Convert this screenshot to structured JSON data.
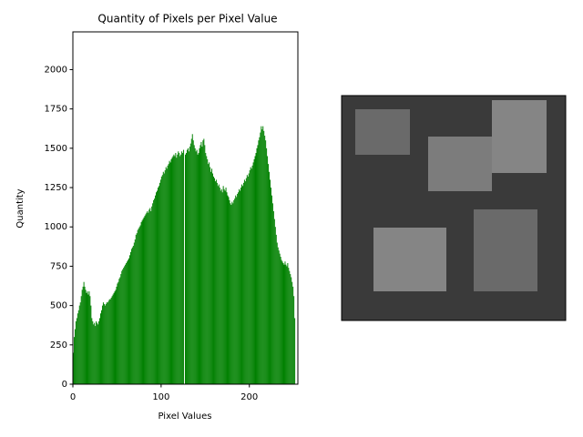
{
  "chart_data": {
    "type": "bar",
    "title": "Quantity of Pixels per Pixel Value",
    "x_label": "Pixel Values",
    "y_label": "Quantity",
    "color": "#008000",
    "x": [
      0,
      1,
      2,
      3,
      4,
      5,
      6,
      7,
      8,
      9,
      10,
      11,
      12,
      13,
      14,
      15,
      16,
      17,
      18,
      19,
      20,
      21,
      22,
      23,
      24,
      25,
      26,
      27,
      28,
      29,
      30,
      31,
      32,
      33,
      34,
      35,
      36,
      37,
      38,
      39,
      40,
      41,
      42,
      43,
      44,
      45,
      46,
      47,
      48,
      49,
      50,
      51,
      52,
      53,
      54,
      55,
      56,
      57,
      58,
      59,
      60,
      61,
      62,
      63,
      64,
      65,
      66,
      67,
      68,
      69,
      70,
      71,
      72,
      73,
      74,
      75,
      76,
      77,
      78,
      79,
      80,
      81,
      82,
      83,
      84,
      85,
      86,
      87,
      88,
      89,
      90,
      91,
      92,
      93,
      94,
      95,
      96,
      97,
      98,
      99,
      100,
      101,
      102,
      103,
      104,
      105,
      106,
      107,
      108,
      109,
      110,
      111,
      112,
      113,
      114,
      115,
      116,
      117,
      118,
      119,
      120,
      121,
      122,
      123,
      124,
      125,
      126,
      127,
      128,
      129,
      130,
      131,
      132,
      133,
      134,
      135,
      136,
      137,
      138,
      139,
      140,
      141,
      142,
      143,
      144,
      145,
      146,
      147,
      148,
      149,
      150,
      151,
      152,
      153,
      154,
      155,
      156,
      157,
      158,
      159,
      160,
      161,
      162,
      163,
      164,
      165,
      166,
      167,
      168,
      169,
      170,
      171,
      172,
      173,
      174,
      175,
      176,
      177,
      178,
      179,
      180,
      181,
      182,
      183,
      184,
      185,
      186,
      187,
      188,
      189,
      190,
      191,
      192,
      193,
      194,
      195,
      196,
      197,
      198,
      199,
      200,
      201,
      202,
      203,
      204,
      205,
      206,
      207,
      208,
      209,
      210,
      211,
      212,
      213,
      214,
      215,
      216,
      217,
      218,
      219,
      220,
      221,
      222,
      223,
      224,
      225,
      226,
      227,
      228,
      229,
      230,
      231,
      232,
      233,
      234,
      235,
      236,
      237,
      238,
      239,
      240,
      241,
      242,
      243,
      244,
      245,
      246,
      247,
      248,
      249,
      250,
      251,
      252,
      253,
      254,
      255
    ],
    "values": [
      200,
      300,
      350,
      400,
      420,
      450,
      470,
      500,
      520,
      560,
      600,
      620,
      650,
      620,
      600,
      580,
      590,
      570,
      590,
      560,
      500,
      420,
      400,
      380,
      390,
      370,
      400,
      390,
      380,
      400,
      420,
      450,
      470,
      500,
      520,
      510,
      500,
      510,
      520,
      520,
      530,
      540,
      540,
      550,
      560,
      570,
      580,
      590,
      600,
      620,
      640,
      650,
      670,
      680,
      700,
      720,
      730,
      740,
      750,
      760,
      770,
      780,
      790,
      800,
      820,
      840,
      860,
      870,
      880,
      900,
      920,
      950,
      960,
      980,
      990,
      1000,
      1010,
      1030,
      1040,
      1050,
      1060,
      1070,
      1080,
      1090,
      1100,
      1090,
      1110,
      1120,
      1100,
      1130,
      1150,
      1170,
      1180,
      1200,
      1220,
      1230,
      1250,
      1260,
      1280,
      1300,
      1320,
      1330,
      1350,
      1340,
      1360,
      1380,
      1370,
      1390,
      1400,
      1420,
      1410,
      1430,
      1440,
      1450,
      1460,
      1450,
      1470,
      1440,
      1460,
      1480,
      1470,
      1450,
      1460,
      1480,
      1470,
      1490,
      0,
      1460,
      1470,
      1490,
      1500,
      1480,
      1510,
      1530,
      1560,
      1590,
      1550,
      1520,
      1500,
      1480,
      1490,
      1460,
      1470,
      1500,
      1520,
      1540,
      1510,
      1550,
      1560,
      1520,
      1470,
      1450,
      1430,
      1400,
      1410,
      1380,
      1350,
      1370,
      1340,
      1320,
      1310,
      1290,
      1300,
      1280,
      1260,
      1270,
      1250,
      1230,
      1240,
      1220,
      1260,
      1240,
      1230,
      1250,
      1220,
      1200,
      1190,
      1170,
      1150,
      1140,
      1160,
      1150,
      1170,
      1180,
      1200,
      1190,
      1210,
      1220,
      1240,
      1230,
      1250,
      1270,
      1260,
      1280,
      1300,
      1290,
      1310,
      1330,
      1320,
      1340,
      1360,
      1380,
      1370,
      1390,
      1410,
      1430,
      1450,
      1470,
      1500,
      1520,
      1550,
      1570,
      1600,
      1640,
      1620,
      1640,
      1610,
      1580,
      1550,
      1500,
      1450,
      1400,
      1350,
      1300,
      1250,
      1200,
      1150,
      1100,
      1050,
      1000,
      950,
      900,
      870,
      850,
      830,
      810,
      790,
      780,
      770,
      760,
      780,
      760,
      750,
      770,
      740,
      720,
      700,
      680,
      650,
      620,
      560,
      420,
      0,
      0,
      0,
      0
    ],
    "xlim": [
      0,
      255
    ],
    "xticks": [
      0,
      100,
      200
    ],
    "ylim": [
      0,
      2240
    ],
    "yticks": [
      0,
      250,
      500,
      750,
      1000,
      1250,
      1500,
      1750,
      2000
    ]
  }
}
